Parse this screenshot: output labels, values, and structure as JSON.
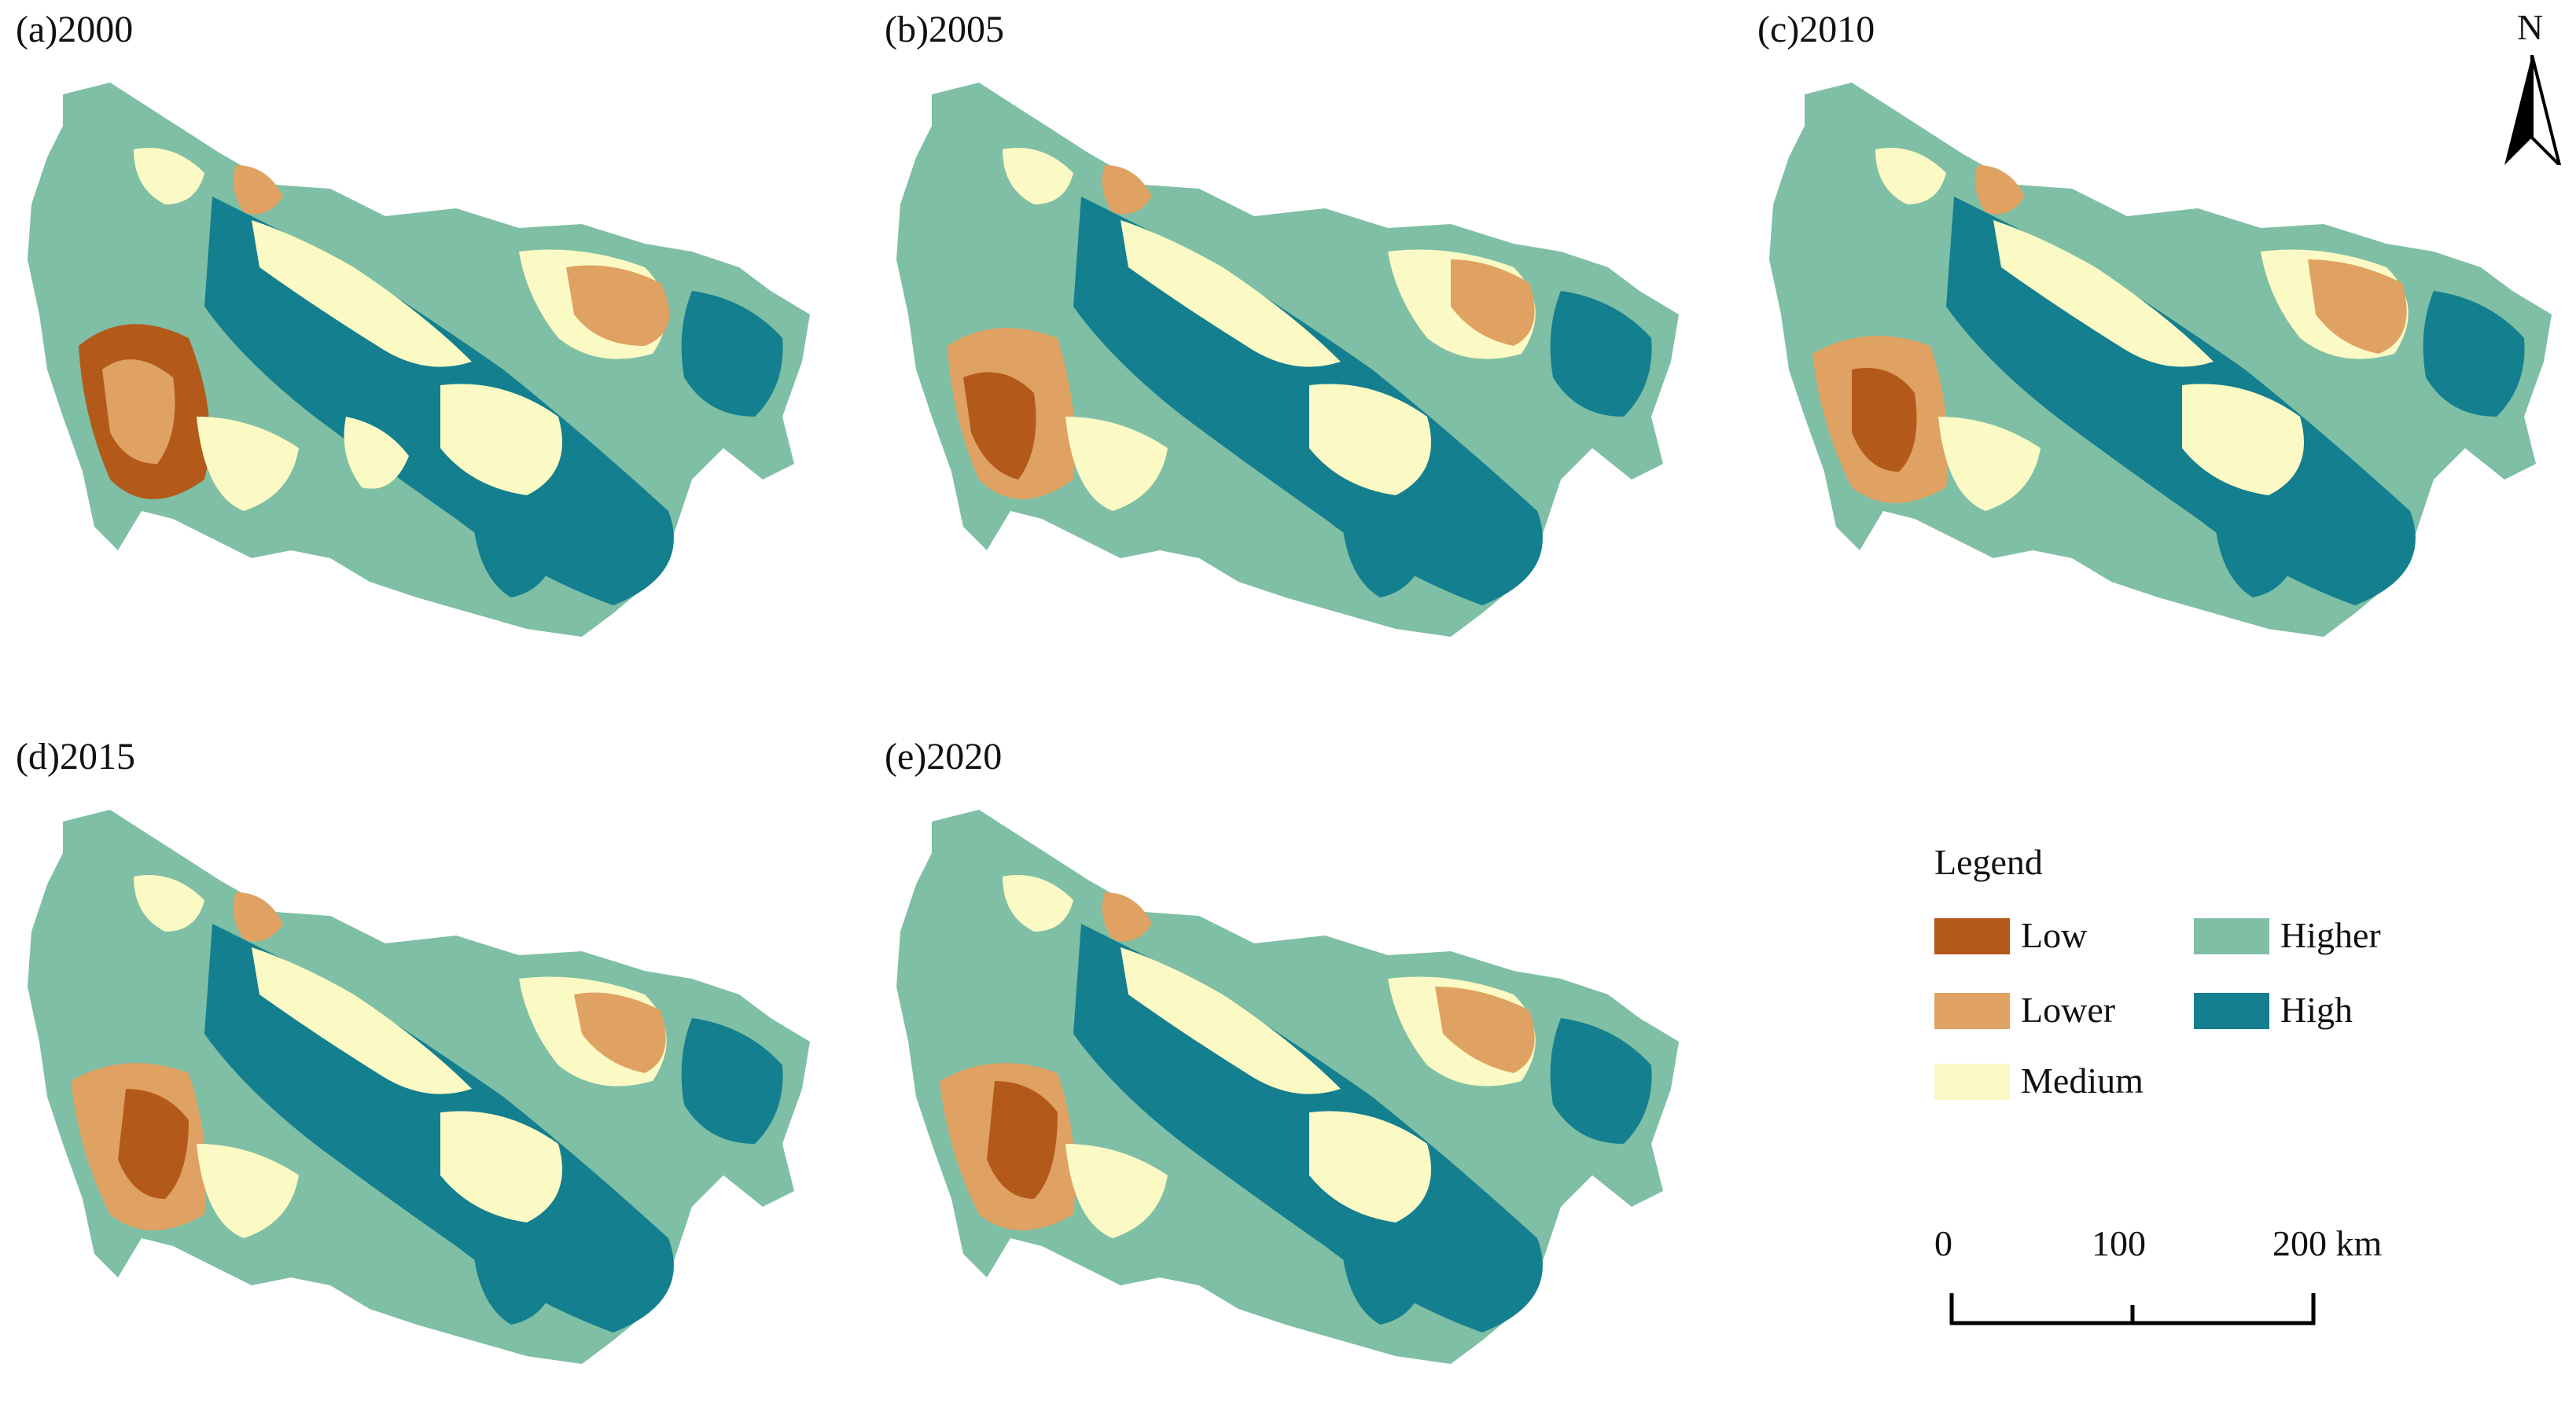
{
  "panels": [
    {
      "id": "a",
      "label": "(a)2000"
    },
    {
      "id": "b",
      "label": "(b)2005"
    },
    {
      "id": "c",
      "label": "(c)2010"
    },
    {
      "id": "d",
      "label": "(d)2015"
    },
    {
      "id": "e",
      "label": "(e)2020"
    }
  ],
  "north_arrow": {
    "letter": "N"
  },
  "legend": {
    "title": "Legend",
    "items": [
      {
        "label": "Low",
        "color": "#b35a1b"
      },
      {
        "label": "Lower",
        "color": "#dfa263"
      },
      {
        "label": "Medium",
        "color": "#fcfac4"
      },
      {
        "label": "Higher",
        "color": "#7fbfa5"
      },
      {
        "label": "High",
        "color": "#137f8f"
      }
    ]
  },
  "scale_bar": {
    "labels": [
      "0",
      "100",
      "200"
    ],
    "unit": "km"
  }
}
